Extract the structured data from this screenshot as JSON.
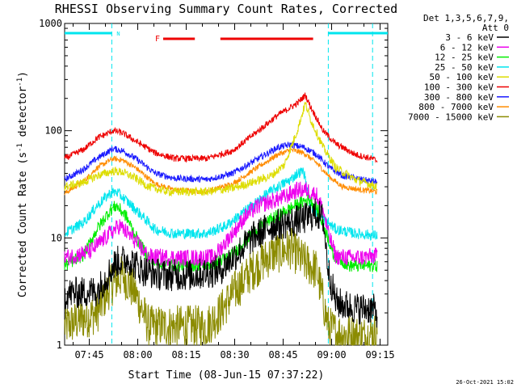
{
  "title": "RHESSI Observing Summary Count Rates, Corrected",
  "timestamp": "26-Oct-2021 15:02",
  "chart_data": {
    "type": "line",
    "ylabel": "Corrected Count Rate (s⁻¹ detector⁻¹)",
    "ylabel_parts": {
      "main": "Corrected Count Rate (s",
      "exp1": "-1",
      "mid": " detector",
      "exp2": "-1",
      "end": ")"
    },
    "xlabel": "Start Time (08-Jun-15 07:37:22)",
    "yscale": "log",
    "ylim": [
      1,
      1000
    ],
    "xlim_minutes": [
      0,
      100
    ],
    "xticks": [
      {
        "label": "07:45",
        "m": 7.63
      },
      {
        "label": "08:00",
        "m": 22.63
      },
      {
        "label": "08:15",
        "m": 37.63
      },
      {
        "label": "08:30",
        "m": 52.63
      },
      {
        "label": "08:45",
        "m": 67.63
      },
      {
        "label": "09:00",
        "m": 82.63
      },
      {
        "label": "09:15",
        "m": 97.63
      }
    ],
    "yticks": [
      {
        "label": "1",
        "v": 1
      },
      {
        "label": "10",
        "v": 10
      },
      {
        "label": "100",
        "v": 100
      },
      {
        "label": "1000",
        "v": 1000
      }
    ],
    "legend_header": [
      "Det 1,3,5,6,7,9,",
      "Att 0"
    ],
    "night_label": "N",
    "flare_label": "F",
    "night_bars": [
      [
        0,
        14.6
      ],
      [
        81.6,
        100
      ]
    ],
    "flare_bars": [
      [
        30.5,
        40.3
      ],
      [
        48.2,
        76.9
      ]
    ],
    "eclipse_lines": [
      14.6,
      81.6,
      95.3
    ],
    "series": [
      {
        "name": "3 - 6 keV",
        "color": "#000000",
        "points": [
          [
            0,
            3
          ],
          [
            10,
            3.2
          ],
          [
            16,
            6
          ],
          [
            20,
            6.3
          ],
          [
            24,
            5
          ],
          [
            30,
            4.5
          ],
          [
            40,
            4.5
          ],
          [
            48,
            5
          ],
          [
            54,
            7.5
          ],
          [
            58,
            10
          ],
          [
            64,
            13
          ],
          [
            70,
            14
          ],
          [
            74,
            15
          ],
          [
            78,
            17
          ],
          [
            80,
            15
          ],
          [
            81.6,
            5
          ],
          [
            84,
            2.5
          ],
          [
            90,
            2.2
          ],
          [
            95,
            2.2
          ],
          [
            97,
            2
          ]
        ],
        "noise": 0.15
      },
      {
        "name": "6 - 12 keV",
        "color": "#ee00ee",
        "points": [
          [
            0,
            6.5
          ],
          [
            8,
            7.5
          ],
          [
            14,
            11
          ],
          [
            17,
            13
          ],
          [
            21,
            10
          ],
          [
            26,
            6.7
          ],
          [
            36,
            6.5
          ],
          [
            46,
            6.6
          ],
          [
            52,
            11
          ],
          [
            56,
            16
          ],
          [
            60,
            20
          ],
          [
            64,
            22
          ],
          [
            68,
            24
          ],
          [
            72,
            28
          ],
          [
            75,
            28
          ],
          [
            78,
            25
          ],
          [
            80,
            18
          ],
          [
            81.6,
            11
          ],
          [
            84,
            6.7
          ],
          [
            90,
            6.5
          ],
          [
            97,
            6.8
          ]
        ],
        "noise": 0.08
      },
      {
        "name": "12 - 25 keV",
        "color": "#00ee00",
        "points": [
          [
            0,
            5.5
          ],
          [
            6,
            7
          ],
          [
            10,
            12
          ],
          [
            14,
            18
          ],
          [
            16,
            20
          ],
          [
            19,
            16
          ],
          [
            23,
            9
          ],
          [
            27,
            6
          ],
          [
            36,
            5.5
          ],
          [
            46,
            5.7
          ],
          [
            52,
            7
          ],
          [
            58,
            11
          ],
          [
            64,
            15
          ],
          [
            70,
            19
          ],
          [
            74,
            22
          ],
          [
            76,
            23
          ],
          [
            78,
            19
          ],
          [
            81.6,
            10
          ],
          [
            83,
            7
          ],
          [
            88,
            5.5
          ],
          [
            97,
            5.5
          ]
        ],
        "noise": 0.06
      },
      {
        "name": "25 - 50 keV",
        "color": "#00e5ee",
        "points": [
          [
            0,
            11
          ],
          [
            6,
            14
          ],
          [
            10,
            20
          ],
          [
            14,
            26
          ],
          [
            16,
            27
          ],
          [
            20,
            21
          ],
          [
            24,
            16
          ],
          [
            28,
            12
          ],
          [
            34,
            11
          ],
          [
            44,
            11
          ],
          [
            50,
            13
          ],
          [
            56,
            18
          ],
          [
            62,
            25
          ],
          [
            66,
            30
          ],
          [
            70,
            35
          ],
          [
            72,
            40
          ],
          [
            74,
            42
          ],
          [
            76,
            20
          ],
          [
            80,
            15
          ],
          [
            84,
            12
          ],
          [
            90,
            11
          ],
          [
            97,
            10.5
          ]
        ],
        "noise": 0.05
      },
      {
        "name": "50 - 100 keV",
        "color": "#dddd00",
        "points": [
          [
            0,
            30
          ],
          [
            6,
            33
          ],
          [
            10,
            38
          ],
          [
            15,
            42
          ],
          [
            18,
            41
          ],
          [
            22,
            36
          ],
          [
            26,
            30
          ],
          [
            32,
            27
          ],
          [
            44,
            27
          ],
          [
            52,
            29
          ],
          [
            58,
            33
          ],
          [
            64,
            38
          ],
          [
            68,
            48
          ],
          [
            72,
            100
          ],
          [
            74.5,
            180
          ],
          [
            76,
            130
          ],
          [
            80,
            70
          ],
          [
            84,
            45
          ],
          [
            90,
            35
          ],
          [
            97,
            30
          ]
        ],
        "noise": 0.04
      },
      {
        "name": "100 - 300 keV",
        "color": "#ee0000",
        "points": [
          [
            0,
            55
          ],
          [
            6,
            67
          ],
          [
            10,
            85
          ],
          [
            15,
            100
          ],
          [
            18,
            95
          ],
          [
            22,
            80
          ],
          [
            28,
            62
          ],
          [
            34,
            55
          ],
          [
            44,
            55
          ],
          [
            52,
            65
          ],
          [
            60,
            100
          ],
          [
            66,
            140
          ],
          [
            72,
            180
          ],
          [
            74.5,
            215
          ],
          [
            76,
            170
          ],
          [
            80,
            100
          ],
          [
            84,
            75
          ],
          [
            90,
            60
          ],
          [
            95,
            55
          ],
          [
            97,
            52
          ]
        ],
        "noise": 0.03
      },
      {
        "name": "300 - 800 keV",
        "color": "#1a1aff",
        "points": [
          [
            0,
            35
          ],
          [
            6,
            44
          ],
          [
            10,
            55
          ],
          [
            15,
            68
          ],
          [
            18,
            65
          ],
          [
            22,
            55
          ],
          [
            28,
            40
          ],
          [
            34,
            36
          ],
          [
            44,
            35
          ],
          [
            52,
            40
          ],
          [
            60,
            55
          ],
          [
            66,
            70
          ],
          [
            70,
            74
          ],
          [
            74,
            70
          ],
          [
            78,
            60
          ],
          [
            82,
            45
          ],
          [
            86,
            38
          ],
          [
            92,
            35
          ],
          [
            97,
            33
          ]
        ],
        "noise": 0.03
      },
      {
        "name": "800 - 7000 keV",
        "color": "#ff8c00",
        "points": [
          [
            0,
            26
          ],
          [
            6,
            34
          ],
          [
            10,
            45
          ],
          [
            15,
            55
          ],
          [
            18,
            53
          ],
          [
            22,
            45
          ],
          [
            28,
            32
          ],
          [
            34,
            28
          ],
          [
            44,
            27
          ],
          [
            52,
            32
          ],
          [
            60,
            46
          ],
          [
            66,
            60
          ],
          [
            70,
            66
          ],
          [
            74,
            62
          ],
          [
            78,
            50
          ],
          [
            82,
            37
          ],
          [
            86,
            30
          ],
          [
            92,
            28
          ],
          [
            97,
            27
          ]
        ],
        "noise": 0.025
      },
      {
        "name": "7000 - 15000 keV",
        "color": "#8b8b00",
        "points": [
          [
            0,
            1.5
          ],
          [
            10,
            2
          ],
          [
            14,
            3.5
          ],
          [
            18,
            4.5
          ],
          [
            22,
            3
          ],
          [
            26,
            1.5
          ],
          [
            34,
            1.5
          ],
          [
            44,
            1.5
          ],
          [
            48,
            2
          ],
          [
            52,
            3
          ],
          [
            58,
            5
          ],
          [
            64,
            7
          ],
          [
            70,
            8
          ],
          [
            74,
            6
          ],
          [
            78,
            5
          ],
          [
            81.6,
            1.5
          ],
          [
            84,
            1.3
          ],
          [
            92,
            1.2
          ],
          [
            97,
            1.3
          ]
        ],
        "noise": 0.2
      }
    ]
  }
}
